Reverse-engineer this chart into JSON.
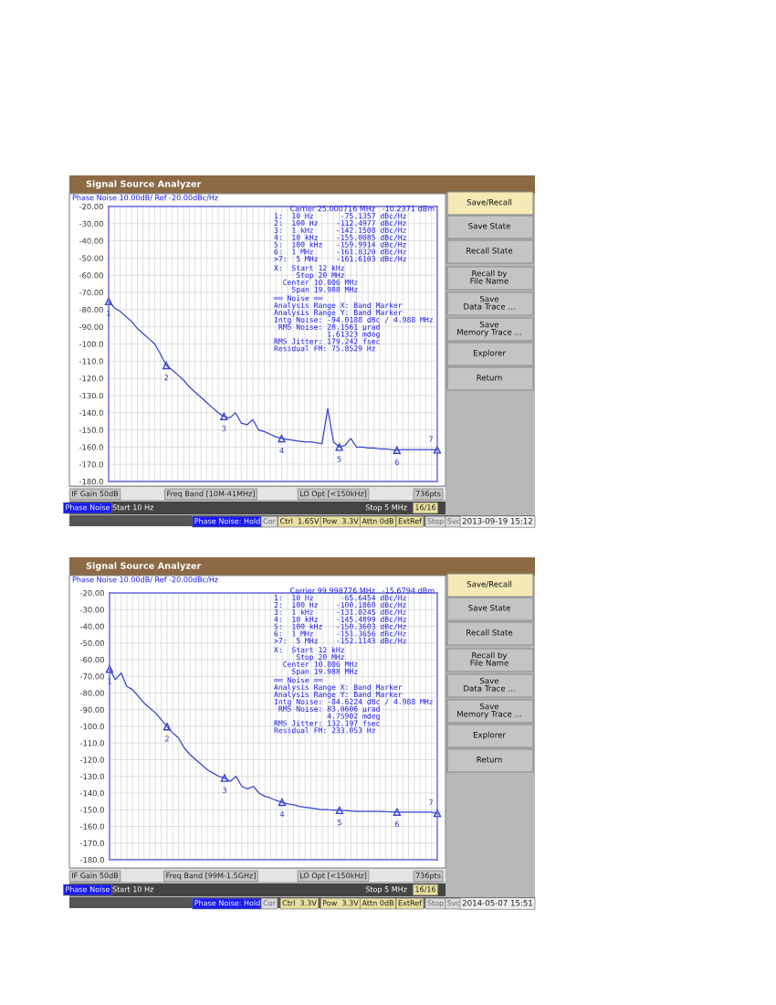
{
  "chart_data": [
    {
      "type": "line",
      "title": "Signal Source Analyzer",
      "subtitle": "Phase Noise 10.00dB/ Ref -20.00dBc/Hz",
      "grid": true,
      "tick_labels": "y",
      "line_style": "solid",
      "marker": "none",
      "categories": [
        null,
        null,
        null,
        null,
        null,
        null,
        null,
        null,
        null,
        null,
        null,
        null,
        null,
        null,
        null,
        null,
        null,
        null,
        null,
        null,
        null,
        null,
        null,
        null,
        null,
        null,
        null,
        null,
        null,
        null,
        null,
        null,
        null,
        null,
        null,
        null,
        null,
        null,
        null,
        null,
        null,
        null,
        null,
        null,
        null,
        null,
        null,
        null,
        null,
        null,
        null,
        null,
        null,
        null,
        null,
        null,
        null,
        null
      ],
      "ylim": [
        -180,
        -20
      ],
      "yticks": [
        {
          "value": -20,
          "label": "-20.00"
        },
        {
          "value": -30,
          "label": "-30.00"
        },
        {
          "value": -40,
          "label": "-40.00"
        },
        {
          "value": -50,
          "label": "-50.00"
        },
        {
          "value": -60,
          "label": "-60.00"
        },
        {
          "value": -70,
          "label": "-70.00"
        },
        {
          "value": -80,
          "label": "-80.00"
        },
        {
          "value": -90,
          "label": "-90.00"
        },
        {
          "value": -100,
          "label": "-100.0"
        },
        {
          "value": -110,
          "label": "-110.0"
        },
        {
          "value": -120,
          "label": "-120.0"
        },
        {
          "value": -130,
          "label": "-130.0"
        },
        {
          "value": -140,
          "label": "-140.0"
        },
        {
          "value": -150,
          "label": "-150.0"
        },
        {
          "value": -160,
          "label": "-160.0"
        },
        {
          "value": -170,
          "label": "-170.0"
        },
        {
          "value": -180,
          "label": "-180.0"
        }
      ],
      "series": [
        {
          "color": "#3344cc",
          "values": [
            -75.1,
            -79,
            -81,
            -84,
            -87,
            -91,
            -94,
            -97,
            -100,
            -106,
            -112.5,
            -115,
            -118,
            -121,
            -125,
            -128,
            -131,
            -134,
            -137,
            -140,
            -142.2,
            -143,
            -140,
            -146,
            -147,
            -144,
            -150,
            -151,
            -152.5,
            -154,
            -155,
            -155.5,
            -156,
            -156.5,
            -157,
            -157,
            -157.5,
            -158,
            -137.5,
            -157,
            -160,
            -159,
            -155,
            -160,
            -160,
            -160.5,
            -160.5,
            -161,
            -161,
            -161.5,
            -161.8,
            -161.5,
            -161.5,
            -161.5,
            -161.5,
            -161.5,
            -161.5,
            -161.6
          ]
        }
      ],
      "annotations": [
        "Carrier 25.000716 MHz   -10.2371 dBm",
        "1:  10 Hz      -75.1357 dBc/Hz\n2:  100 Hz    -112.4977 dBc/Hz\n3:  1 kHz     -142.1508 dBc/Hz\n4:  10 kHz    -155.0085 dBc/Hz\n5:  100 kHz   -159.9914 dBc/Hz\n6:  1 MHz     -161.8320 dBc/Hz\n>7:  5 MHz    -161.6103 dBc/Hz",
        "X:  Start 12 kHz\n     Stop 20 MHz\n  Center 10.006 MHz\n    Span 19.988 MHz",
        "══ Noise ══\nAnalysis Range X: Band Marker\nAnalysis Range Y: Band Marker\nIntg Noise: -94.0188 dBc / 4.988 MHz\n RMS Noise: 28.1561 µrad\n            1.61323 mdeg\nRMS Jitter: 179.242 fsec\nResidual FM: 75.8529 Hz",
        "IF Gain 50dB",
        "Freq Band [10M-41MHz]",
        "LO Opt [<150kHz]",
        "736pts",
        "Phase Noise",
        "Start 10 Hz",
        "Stop 5 MHz",
        "16/16",
        "Phase Noise: Hold",
        "Cor",
        "Ctrl  1.65V",
        "Pow  3.3V",
        "Attn 0dB",
        "ExtRef",
        "Stop",
        "Svc",
        "2013-09-19 15:12",
        "Save/Recall",
        "Save State",
        "Recall State",
        "Recall by\nFile Name",
        "Save\nData Trace ...",
        "Save\nMemory Trace ...",
        "Explorer",
        "Return",
        {
          "text": "1",
          "y": -75.1357
        },
        {
          "text": "2",
          "y": -112.4977
        },
        {
          "text": "3",
          "y": -142.1508
        },
        {
          "text": "4",
          "y": -155.0085
        },
        {
          "text": "5",
          "y": -159.9914
        },
        {
          "text": "6",
          "y": -161.832
        },
        {
          "text": "7",
          "y": -161.6103
        }
      ]
    },
    {
      "type": "line",
      "title": "Signal Source Analyzer",
      "subtitle": "Phase Noise 10.00dB/ Ref -20.00dBc/Hz",
      "grid": true,
      "tick_labels": "y",
      "line_style": "solid",
      "marker": "none",
      "categories": [
        null,
        null,
        null,
        null,
        null,
        null,
        null,
        null,
        null,
        null,
        null,
        null,
        null,
        null,
        null,
        null,
        null,
        null,
        null,
        null,
        null,
        null,
        null,
        null,
        null,
        null,
        null,
        null,
        null,
        null,
        null,
        null,
        null,
        null,
        null,
        null,
        null,
        null,
        null,
        null,
        null,
        null,
        null,
        null,
        null,
        null,
        null,
        null,
        null,
        null,
        null,
        null,
        null,
        null,
        null,
        null,
        null,
        null
      ],
      "ylim": [
        -180,
        -20
      ],
      "yticks": [
        {
          "value": -20,
          "label": "-20.00"
        },
        {
          "value": -30,
          "label": "-30.00"
        },
        {
          "value": -40,
          "label": "-40.00"
        },
        {
          "value": -50,
          "label": "-50.00"
        },
        {
          "value": -60,
          "label": "-60.00"
        },
        {
          "value": -70,
          "label": "-70.00"
        },
        {
          "value": -80,
          "label": "-80.00"
        },
        {
          "value": -90,
          "label": "-90.00"
        },
        {
          "value": -100,
          "label": "-100.0"
        },
        {
          "value": -110,
          "label": "-110.0"
        },
        {
          "value": -120,
          "label": "-120.0"
        },
        {
          "value": -130,
          "label": "-130.0"
        },
        {
          "value": -140,
          "label": "-140.0"
        },
        {
          "value": -150,
          "label": "-150.0"
        },
        {
          "value": -160,
          "label": "-160.0"
        },
        {
          "value": -170,
          "label": "-170.0"
        },
        {
          "value": -180,
          "label": "-180.0"
        }
      ],
      "series": [
        {
          "color": "#3344cc",
          "values": [
            -65.6,
            -72,
            -68,
            -76,
            -78,
            -82,
            -86,
            -89,
            -92,
            -96,
            -100.2,
            -104,
            -107,
            -113,
            -117,
            -120,
            -123,
            -126,
            -128,
            -130,
            -131,
            -133,
            -130,
            -136,
            -137.5,
            -136,
            -140,
            -142,
            -143,
            -144.5,
            -145.5,
            -146.5,
            -147,
            -148,
            -148.5,
            -149,
            -149.5,
            -150,
            -150,
            -150.2,
            -150.4,
            -150.5,
            -150.7,
            -151,
            -151,
            -151,
            -151,
            -151,
            -151.2,
            -151.3,
            -151.4,
            -151.5,
            -151.5,
            -151.5,
            -151.5,
            -151.5,
            -151.5,
            -152.1
          ]
        }
      ],
      "annotations": [
        "Carrier 99.998776 MHz   -15.6794 dBm",
        "1:  10 Hz      -65.6454 dBc/Hz\n2:  100 Hz    -100.1860 dBc/Hz\n3:  1 kHz     -131.0245 dBc/Hz\n4:  10 kHz    -145.4899 dBc/Hz\n5:  100 kHz   -150.3603 dBc/Hz\n6:  1 MHz     -151.3656 dBc/Hz\n>7:  5 MHz    -152.1143 dBc/Hz",
        "X:  Start 12 kHz\n     Stop 20 MHz\n  Center 10.006 MHz\n    Span 19.988 MHz",
        "══ Noise ══\nAnalysis Range X: Band Marker\nAnalysis Range Y: Band Marker\nIntg Noise: -84.6224 dBc / 4.988 MHz\n RMS Noise: 83.0606 µrad\n            4.75902 mdeg\nRMS Jitter: 132.197 fsec\nResidual FM: 233.053 Hz",
        "IF Gain 50dB",
        "Freq Band [99M-1.5GHz]",
        "LO Opt [<150kHz]",
        "736pts",
        "Phase Noise",
        "Start 10 Hz",
        "Stop 5 MHz",
        "16/16",
        "Phase Noise: Hold",
        "Cor",
        "Ctrl  3.3V",
        "Pow  3.3V",
        "Attn 0dB",
        "ExtRef",
        "Stop",
        "Svc",
        "2014-05-07 15:51",
        "Save/Recall",
        "Save State",
        "Recall State",
        "Recall by\nFile Name",
        "Save\nData Trace ...",
        "Save\nMemory Trace ...",
        "Explorer",
        "Return",
        {
          "text": "1",
          "y": -65.6454
        },
        {
          "text": "2",
          "y": -100.186
        },
        {
          "text": "3",
          "y": -131.0245
        },
        {
          "text": "4",
          "y": -145.4899
        },
        {
          "text": "5",
          "y": -150.3603
        },
        {
          "text": "6",
          "y": -151.3656
        },
        {
          "text": "7",
          "y": -152.1143
        }
      ]
    }
  ]
}
